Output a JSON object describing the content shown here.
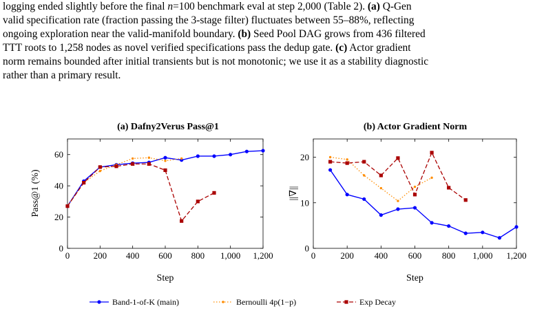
{
  "caption": {
    "lines": [
      [
        {
          "t": "logging ended slightly before the final "
        },
        {
          "t": "n",
          "i": true
        },
        {
          "t": "=100 benchmark eval at step 2,000 (Table 2). "
        },
        {
          "t": "(a)",
          "b": true
        },
        {
          "t": " Q-Gen"
        }
      ],
      [
        {
          "t": "valid specification rate (fraction passing the 3-stage filter) fluctuates between 55–88%, reflecting"
        }
      ],
      [
        {
          "t": "ongoing exploration near the valid-manifold boundary. "
        },
        {
          "t": "(b)",
          "b": true
        },
        {
          "t": " Seed Pool DAG grows from 436 filtered"
        }
      ],
      [
        {
          "t": "TTT roots to 1,258 nodes as novel verified specifications pass the dedup gate. "
        },
        {
          "t": "(c)",
          "b": true
        },
        {
          "t": " Actor gradient"
        }
      ],
      [
        {
          "t": "norm remains bounded after initial transients but is not monotonic; we use it as a stability diagnostic"
        }
      ],
      [
        {
          "t": "rather than a primary result."
        }
      ]
    ]
  },
  "legend": {
    "items": [
      {
        "label": "Band-1-of-K (main)",
        "color": "#0000ff",
        "style": "solid",
        "marker": "circle"
      },
      {
        "label": "Bernoulli 4p(1−p)",
        "color": "#ff8c00",
        "style": "dotted",
        "marker": "circle"
      },
      {
        "label": "Exp Decay",
        "color": "#aa0000",
        "style": "dashed",
        "marker": "square"
      }
    ]
  },
  "chart_data": [
    {
      "type": "line",
      "title": "(a) Dafny2Verus Pass@1",
      "xlabel": "Step",
      "ylabel": "Pass@1 (%)",
      "xlim": [
        0,
        1200
      ],
      "ylim": [
        0,
        70
      ],
      "xticks": [
        0,
        200,
        400,
        600,
        800,
        1000,
        1200
      ],
      "xtick_labels": [
        "0",
        "200",
        "400",
        "600",
        "800",
        "1,000",
        "1,200"
      ],
      "yticks": [
        0,
        20,
        40,
        60
      ],
      "ytick_labels": [
        "0",
        "20",
        "40",
        "60"
      ],
      "grid": false,
      "series": [
        {
          "name": "Band-1-of-K (main)",
          "color": "#0000ff",
          "style": "solid",
          "marker": "circle",
          "x": [
            0,
            100,
            200,
            300,
            400,
            500,
            600,
            700,
            800,
            900,
            1000,
            1100,
            1200
          ],
          "y": [
            27,
            43,
            52,
            53.5,
            54.5,
            55,
            58,
            56.5,
            59,
            59,
            60,
            62,
            62.5
          ]
        },
        {
          "name": "Bernoulli 4p(1−p)",
          "color": "#ff8c00",
          "style": "dotted",
          "marker": "circle",
          "x": [
            0,
            100,
            200,
            300,
            400,
            500,
            600,
            700
          ],
          "y": [
            27,
            42,
            49.5,
            53.5,
            57.5,
            58,
            56,
            57.5
          ]
        },
        {
          "name": "Exp Decay",
          "color": "#aa0000",
          "style": "dashed",
          "marker": "square",
          "x": [
            0,
            100,
            200,
            300,
            400,
            500,
            600,
            700,
            800,
            900
          ],
          "y": [
            27,
            42,
            52,
            52.5,
            54,
            54,
            50,
            17.5,
            30,
            35.5
          ]
        }
      ]
    },
    {
      "type": "line",
      "title": "(b) Actor Gradient Norm",
      "xlabel": "Step",
      "ylabel": "||∇||",
      "xlim": [
        0,
        1200
      ],
      "ylim": [
        0,
        24
      ],
      "xticks": [
        0,
        200,
        400,
        600,
        800,
        1000,
        1200
      ],
      "xtick_labels": [
        "0",
        "200",
        "400",
        "600",
        "800",
        "1,000",
        "1,200"
      ],
      "yticks": [
        0,
        10,
        20
      ],
      "ytick_labels": [
        "0",
        "10",
        "20"
      ],
      "grid": false,
      "series": [
        {
          "name": "Band-1-of-K (main)",
          "color": "#0000ff",
          "style": "solid",
          "marker": "circle",
          "x": [
            100,
            200,
            300,
            400,
            500,
            600,
            700,
            800,
            900,
            1000,
            1100,
            1200
          ],
          "y": [
            17.2,
            11.8,
            10.8,
            7.3,
            8.6,
            8.9,
            5.6,
            4.9,
            3.3,
            3.5,
            2.3,
            4.7
          ]
        },
        {
          "name": "Bernoulli 4p(1−p)",
          "color": "#ff8c00",
          "style": "dotted",
          "marker": "circle",
          "x": [
            100,
            200,
            300,
            400,
            500,
            600,
            700
          ],
          "y": [
            20,
            19.5,
            16,
            13.2,
            10.4,
            13.5,
            15.5
          ]
        },
        {
          "name": "Exp Decay",
          "color": "#aa0000",
          "style": "dashed",
          "marker": "square",
          "x": [
            100,
            200,
            300,
            400,
            500,
            600,
            700,
            800,
            900
          ],
          "y": [
            19,
            18.7,
            19,
            16,
            19.8,
            11.8,
            21,
            13.3,
            10.6
          ]
        }
      ]
    }
  ]
}
